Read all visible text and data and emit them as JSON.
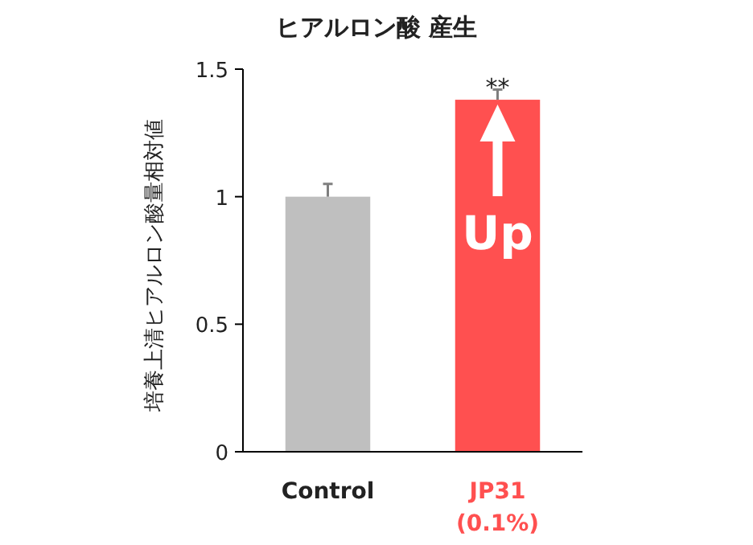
{
  "chart_data": {
    "type": "bar",
    "title": "ヒアルロン酸 産生",
    "ylabel": "培養上清ヒアルロン酸量相対値",
    "categories": [
      "Control",
      "JP31\n(0.1%)"
    ],
    "values": [
      1.0,
      1.38
    ],
    "colors": [
      "#bfbfbf",
      "#ff5050"
    ],
    "errors": [
      0.05,
      0.04
    ],
    "ylim": [
      0,
      1.5
    ],
    "yticks": [
      0,
      0.5,
      1,
      1.5
    ],
    "grid": false,
    "annotations": [
      "**",
      "Up"
    ]
  }
}
